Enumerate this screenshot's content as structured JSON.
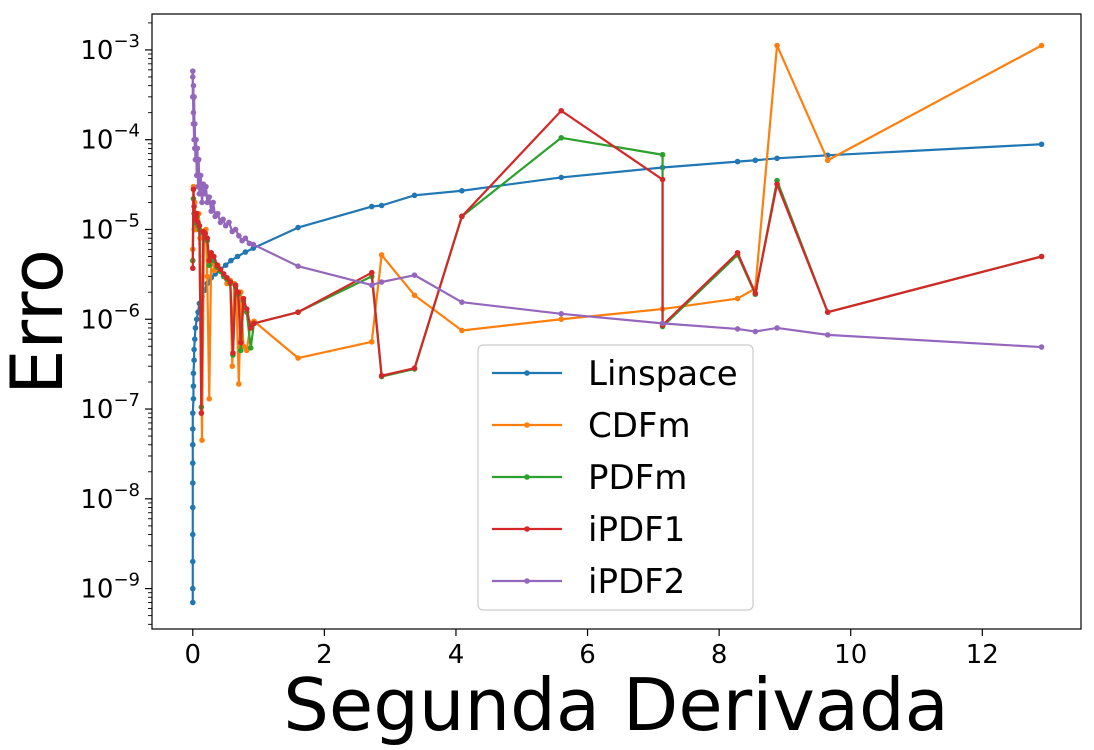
{
  "chart_data": {
    "type": "line",
    "xlabel": "Segunda Derivada",
    "ylabel": "Erro",
    "xlim": [
      -0.62,
      13.5
    ],
    "ylim_exp": [
      -9.45,
      -2.6
    ],
    "yscale": "log",
    "grid": false,
    "legend_position": "lower-center",
    "x_ticks": [
      0,
      2,
      4,
      6,
      8,
      10,
      12
    ],
    "x_tick_labels": [
      "0",
      "2",
      "4",
      "6",
      "8",
      "10",
      "12"
    ],
    "y_ticks_exp": [
      -9,
      -8,
      -7,
      -6,
      -5,
      -4,
      -3
    ],
    "y_tick_labels": [
      {
        "base": "10",
        "exp": "−9"
      },
      {
        "base": "10",
        "exp": "−8"
      },
      {
        "base": "10",
        "exp": "−7"
      },
      {
        "base": "10",
        "exp": "−6"
      },
      {
        "base": "10",
        "exp": "−5"
      },
      {
        "base": "10",
        "exp": "−4"
      },
      {
        "base": "10",
        "exp": "−3"
      }
    ],
    "series": [
      {
        "name": "Linspace",
        "color": "#1f77b4",
        "x": [
          0.0,
          0.0,
          0.0,
          0.0,
          0.0,
          0.0,
          0.0,
          0.0,
          0.0,
          0.0,
          0.01,
          0.01,
          0.01,
          0.02,
          0.02,
          0.03,
          0.04,
          0.06,
          0.08,
          0.1,
          0.14,
          0.18,
          0.22,
          0.28,
          0.34,
          0.42,
          0.5,
          0.58,
          0.68,
          0.8,
          0.92,
          1.6,
          2.72,
          2.87,
          3.37,
          4.09,
          5.6,
          7.14,
          8.28,
          8.55,
          8.88,
          9.65,
          12.9
        ],
        "y": [
          7e-10,
          1e-09,
          2e-09,
          4e-09,
          8e-09,
          1.5e-08,
          2.5e-08,
          4e-08,
          6e-08,
          9e-08,
          1.3e-07,
          1.8e-07,
          2.5e-07,
          3.5e-07,
          4.6e-07,
          6e-07,
          8e-07,
          1e-06,
          1.2e-06,
          1.5e-06,
          1.8e-06,
          2.1e-06,
          2.5e-06,
          2.9e-06,
          3.2e-06,
          3.6e-06,
          4e-06,
          4.5e-06,
          5e-06,
          5.6e-06,
          6.2e-06,
          1.05e-05,
          1.8e-05,
          1.85e-05,
          2.4e-05,
          2.7e-05,
          3.8e-05,
          4.9e-05,
          5.7e-05,
          5.9e-05,
          6.2e-05,
          6.7e-05,
          8.9e-05
        ]
      },
      {
        "name": "CDFm",
        "color": "#ff7f0e",
        "x": [
          0.0,
          0.01,
          0.02,
          0.03,
          0.05,
          0.07,
          0.09,
          0.11,
          0.14,
          0.17,
          0.2,
          0.22,
          0.25,
          0.28,
          0.33,
          0.38,
          0.42,
          0.47,
          0.52,
          0.57,
          0.6,
          0.63,
          0.66,
          0.7,
          0.73,
          0.77,
          0.82,
          0.88,
          0.93,
          1.6,
          2.72,
          2.87,
          3.37,
          4.09,
          5.6,
          7.14,
          8.28,
          8.55,
          8.88,
          9.65,
          12.9
        ],
        "y": [
          6e-06,
          3e-05,
          1e-05,
          2e-05,
          1e-05,
          1.2e-05,
          1.5e-05,
          8e-06,
          4.5e-08,
          9e-06,
          1e-05,
          3e-06,
          1.3e-07,
          5e-06,
          3.5e-06,
          4e-06,
          3.5e-06,
          3e-06,
          2.5e-06,
          2.7e-06,
          3e-07,
          2.5e-06,
          2e-06,
          1.9e-07,
          2e-06,
          5e-07,
          4.5e-07,
          9e-07,
          9.5e-07,
          3.7e-07,
          5.6e-07,
          5.2e-06,
          1.85e-06,
          7.5e-07,
          1e-06,
          1.3e-06,
          1.7e-06,
          2.2e-06,
          0.00112,
          5.9e-05,
          0.00112
        ]
      },
      {
        "name": "PDFm",
        "color": "#2ca02c",
        "x": [
          0.0,
          0.01,
          0.02,
          0.04,
          0.06,
          0.08,
          0.1,
          0.13,
          0.16,
          0.19,
          0.22,
          0.25,
          0.28,
          0.32,
          0.37,
          0.42,
          0.47,
          0.52,
          0.57,
          0.61,
          0.65,
          0.69,
          0.73,
          0.77,
          0.82,
          0.88,
          0.93,
          1.6,
          2.72,
          2.87,
          3.37,
          4.09,
          5.6,
          7.14,
          7.14,
          8.28,
          8.55,
          8.88,
          9.65,
          12.9
        ],
        "y": [
          4.5e-06,
          2.2e-05,
          1.5e-05,
          1.2e-05,
          1.4e-05,
          1.1e-05,
          1e-05,
          1.05e-07,
          9e-06,
          8e-06,
          7.5e-06,
          4e-06,
          5e-06,
          4.5e-06,
          3.8e-06,
          3.4e-06,
          3e-06,
          2.8e-06,
          2.5e-06,
          4e-07,
          2.3e-06,
          1.9e-06,
          4.5e-07,
          1.6e-06,
          1.2e-06,
          4.8e-07,
          9e-07,
          1.2e-06,
          3e-06,
          2.3e-07,
          2.8e-07,
          1.4e-05,
          0.000105,
          6.8e-05,
          8.3e-07,
          5.2e-06,
          1.9e-06,
          3.5e-05,
          1.2e-06,
          5e-06
        ]
      },
      {
        "name": "iPDF1",
        "color": "#d62728",
        "x": [
          0.0,
          0.01,
          0.02,
          0.04,
          0.06,
          0.08,
          0.1,
          0.13,
          0.16,
          0.19,
          0.22,
          0.25,
          0.28,
          0.32,
          0.37,
          0.42,
          0.47,
          0.52,
          0.57,
          0.61,
          0.65,
          0.69,
          0.73,
          0.77,
          0.82,
          0.88,
          0.93,
          1.6,
          2.72,
          2.87,
          3.37,
          4.09,
          5.6,
          7.14,
          7.14,
          8.28,
          8.55,
          8.88,
          9.65,
          12.9
        ],
        "y": [
          3.7e-06,
          2.8e-05,
          1.8e-05,
          1.3e-05,
          1.5e-05,
          1.2e-05,
          1.1e-05,
          9e-08,
          9.5e-06,
          9e-06,
          8e-06,
          4.5e-06,
          5.5e-06,
          5e-06,
          4e-06,
          3.6e-06,
          3.2e-06,
          2.9e-06,
          2.6e-06,
          4.2e-07,
          2.4e-06,
          2e-06,
          5.5e-07,
          1.7e-06,
          1.3e-06,
          8e-07,
          9e-07,
          1.2e-06,
          3.3e-06,
          2.35e-07,
          2.85e-07,
          1.4e-05,
          0.00021,
          3.6e-05,
          8.6e-07,
          5.5e-06,
          1.95e-06,
          3.2e-05,
          1.2e-06,
          5e-06
        ]
      },
      {
        "name": "iPDF2",
        "color": "#9467bd",
        "x": [
          0.0,
          0.0,
          0.0,
          0.01,
          0.01,
          0.01,
          0.02,
          0.02,
          0.03,
          0.03,
          0.04,
          0.05,
          0.06,
          0.07,
          0.08,
          0.09,
          0.1,
          0.12,
          0.14,
          0.16,
          0.18,
          0.2,
          0.22,
          0.25,
          0.28,
          0.31,
          0.34,
          0.38,
          0.42,
          0.46,
          0.5,
          0.55,
          0.6,
          0.65,
          0.7,
          0.75,
          0.8,
          0.86,
          0.92,
          1.6,
          2.72,
          2.87,
          3.37,
          4.09,
          5.6,
          7.14,
          8.28,
          8.55,
          8.88,
          9.65,
          12.9
        ],
        "y": [
          0.00058,
          0.0003,
          0.0005,
          0.00015,
          0.0004,
          0.0002,
          0.0001,
          0.0003,
          8e-05,
          0.00015,
          6e-05,
          0.0001,
          4e-05,
          8e-05,
          3e-05,
          6e-05,
          2.5e-05,
          4e-05,
          2e-05,
          3.2e-05,
          2.5e-05,
          3e-05,
          2e-05,
          2.3e-05,
          1.6e-05,
          2e-05,
          1.4e-05,
          1.5e-05,
          1.2e-05,
          1.3e-05,
          1.1e-05,
          1.2e-05,
          9.5e-06,
          1e-05,
          8.5e-06,
          7.5e-06,
          8e-06,
          7e-06,
          6.8e-06,
          3.9e-06,
          2.4e-06,
          2.6e-06,
          3.1e-06,
          1.55e-06,
          1.15e-06,
          9e-07,
          7.8e-07,
          7.3e-07,
          8e-07,
          6.7e-07,
          4.9e-07
        ]
      }
    ]
  }
}
